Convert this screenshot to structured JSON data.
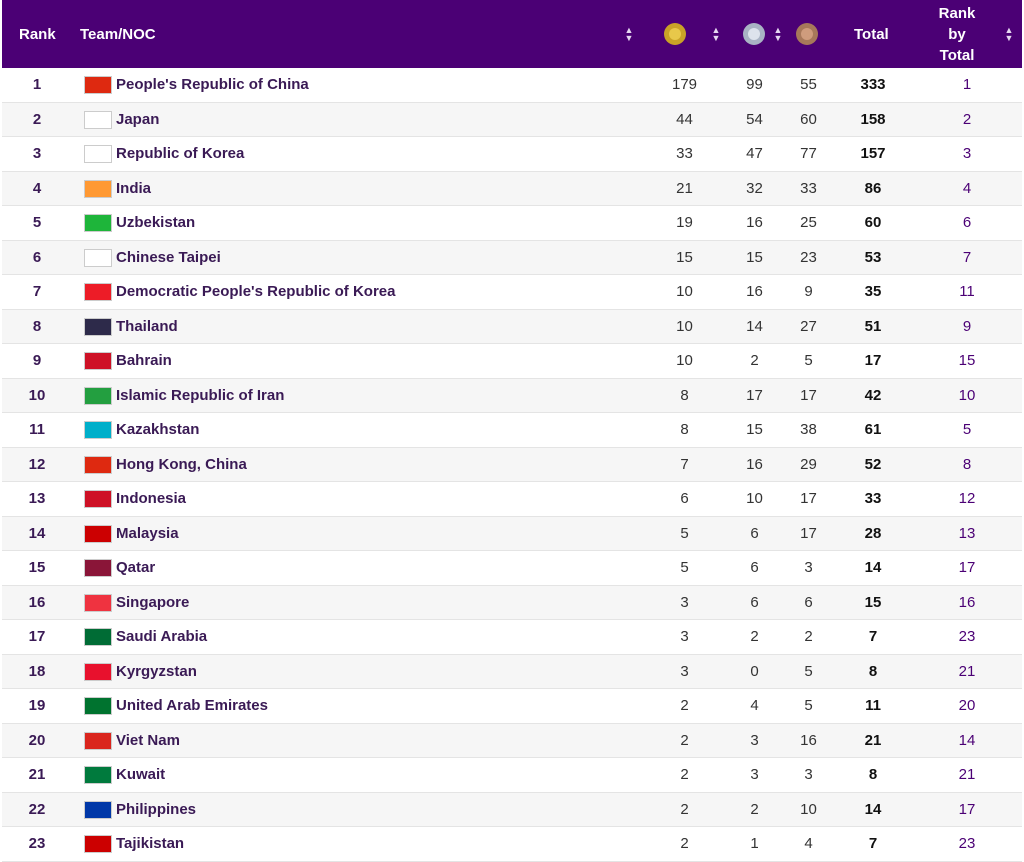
{
  "header": {
    "rank": "Rank",
    "team": "Team/NOC",
    "total": "Total",
    "rank_by_total_line1": "Rank",
    "rank_by_total_line2": "by",
    "rank_by_total_line3": "Total",
    "medal_icons": [
      "gold-medal-icon",
      "silver-medal-icon",
      "bronze-medal-icon"
    ],
    "accent_color": "#4b0075"
  },
  "rows": [
    {
      "rank": "1",
      "team": "People's Republic of China",
      "gold": "179",
      "silver": "99",
      "bronze": "55",
      "total": "333",
      "rank_total": "1",
      "flag": "#de2910"
    },
    {
      "rank": "2",
      "team": "Japan",
      "gold": "44",
      "silver": "54",
      "bronze": "60",
      "total": "158",
      "rank_total": "2",
      "flag": "#ffffff"
    },
    {
      "rank": "3",
      "team": "Republic of Korea",
      "gold": "33",
      "silver": "47",
      "bronze": "77",
      "total": "157",
      "rank_total": "3",
      "flag": "#ffffff"
    },
    {
      "rank": "4",
      "team": "India",
      "gold": "21",
      "silver": "32",
      "bronze": "33",
      "total": "86",
      "rank_total": "4",
      "flag": "#ff9933"
    },
    {
      "rank": "5",
      "team": "Uzbekistan",
      "gold": "19",
      "silver": "16",
      "bronze": "25",
      "total": "60",
      "rank_total": "6",
      "flag": "#1eb53a"
    },
    {
      "rank": "6",
      "team": "Chinese Taipei",
      "gold": "15",
      "silver": "15",
      "bronze": "23",
      "total": "53",
      "rank_total": "7",
      "flag": "#ffffff"
    },
    {
      "rank": "7",
      "team": "Democratic People's Republic of Korea",
      "gold": "10",
      "silver": "16",
      "bronze": "9",
      "total": "35",
      "rank_total": "11",
      "flag": "#ed1c27"
    },
    {
      "rank": "8",
      "team": "Thailand",
      "gold": "10",
      "silver": "14",
      "bronze": "27",
      "total": "51",
      "rank_total": "9",
      "flag": "#2d2a4a"
    },
    {
      "rank": "9",
      "team": "Bahrain",
      "gold": "10",
      "silver": "2",
      "bronze": "5",
      "total": "17",
      "rank_total": "15",
      "flag": "#ce1126"
    },
    {
      "rank": "10",
      "team": "Islamic Republic of Iran",
      "gold": "8",
      "silver": "17",
      "bronze": "17",
      "total": "42",
      "rank_total": "10",
      "flag": "#239f40"
    },
    {
      "rank": "11",
      "team": "Kazakhstan",
      "gold": "8",
      "silver": "15",
      "bronze": "38",
      "total": "61",
      "rank_total": "5",
      "flag": "#00afca"
    },
    {
      "rank": "12",
      "team": "Hong Kong, China",
      "gold": "7",
      "silver": "16",
      "bronze": "29",
      "total": "52",
      "rank_total": "8",
      "flag": "#de2910"
    },
    {
      "rank": "13",
      "team": "Indonesia",
      "gold": "6",
      "silver": "10",
      "bronze": "17",
      "total": "33",
      "rank_total": "12",
      "flag": "#ce1126"
    },
    {
      "rank": "14",
      "team": "Malaysia",
      "gold": "5",
      "silver": "6",
      "bronze": "17",
      "total": "28",
      "rank_total": "13",
      "flag": "#cc0001"
    },
    {
      "rank": "15",
      "team": "Qatar",
      "gold": "5",
      "silver": "6",
      "bronze": "3",
      "total": "14",
      "rank_total": "17",
      "flag": "#8a1538"
    },
    {
      "rank": "16",
      "team": "Singapore",
      "gold": "3",
      "silver": "6",
      "bronze": "6",
      "total": "15",
      "rank_total": "16",
      "flag": "#ef3340"
    },
    {
      "rank": "17",
      "team": "Saudi Arabia",
      "gold": "3",
      "silver": "2",
      "bronze": "2",
      "total": "7",
      "rank_total": "23",
      "flag": "#006c35"
    },
    {
      "rank": "18",
      "team": "Kyrgyzstan",
      "gold": "3",
      "silver": "0",
      "bronze": "5",
      "total": "8",
      "rank_total": "21",
      "flag": "#e8112d"
    },
    {
      "rank": "19",
      "team": "United Arab Emirates",
      "gold": "2",
      "silver": "4",
      "bronze": "5",
      "total": "11",
      "rank_total": "20",
      "flag": "#00732f"
    },
    {
      "rank": "20",
      "team": "Viet Nam",
      "gold": "2",
      "silver": "3",
      "bronze": "16",
      "total": "21",
      "rank_total": "14",
      "flag": "#da251d"
    },
    {
      "rank": "21",
      "team": "Kuwait",
      "gold": "2",
      "silver": "3",
      "bronze": "3",
      "total": "8",
      "rank_total": "21",
      "flag": "#007a3d"
    },
    {
      "rank": "22",
      "team": "Philippines",
      "gold": "2",
      "silver": "2",
      "bronze": "10",
      "total": "14",
      "rank_total": "17",
      "flag": "#0038a8"
    },
    {
      "rank": "23",
      "team": "Tajikistan",
      "gold": "2",
      "silver": "1",
      "bronze": "4",
      "total": "7",
      "rank_total": "23",
      "flag": "#cc0000"
    }
  ]
}
